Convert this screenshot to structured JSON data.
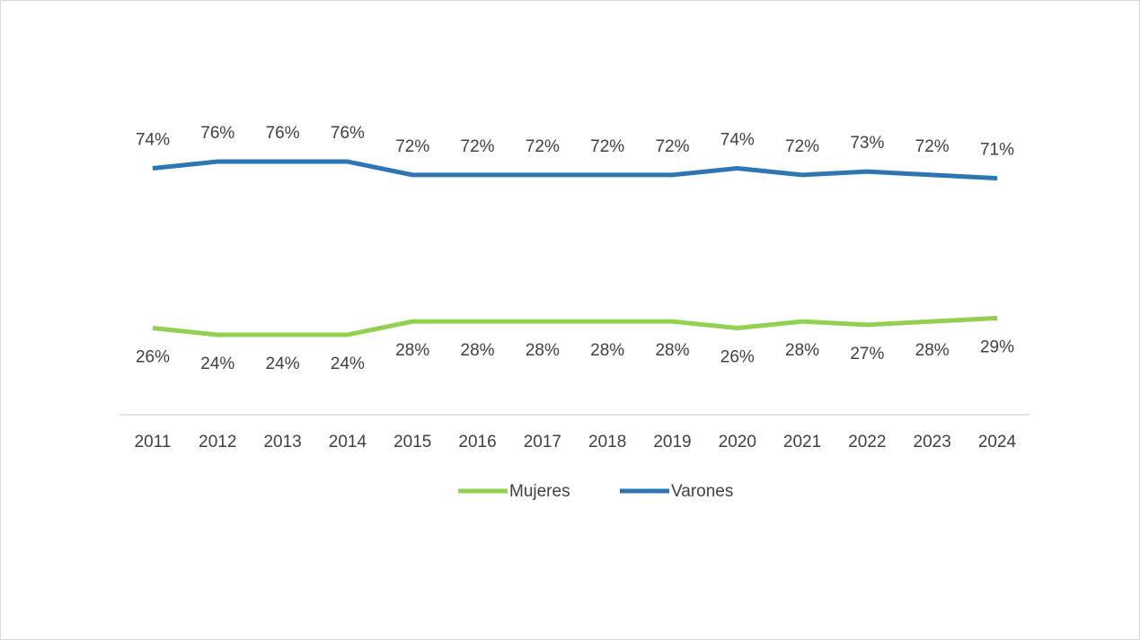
{
  "chart_data": {
    "type": "line",
    "categories": [
      "2011",
      "2012",
      "2013",
      "2014",
      "2015",
      "2016",
      "2017",
      "2018",
      "2019",
      "2020",
      "2021",
      "2022",
      "2023",
      "2024"
    ],
    "series": [
      {
        "name": "Mujeres",
        "color": "#92d050",
        "values": [
          26,
          24,
          24,
          24,
          28,
          28,
          28,
          28,
          28,
          26,
          28,
          27,
          28,
          29
        ],
        "value_labels": [
          "26%",
          "24%",
          "24%",
          "24%",
          "28%",
          "28%",
          "28%",
          "28%",
          "28%",
          "26%",
          "28%",
          "27%",
          "28%",
          "29%"
        ]
      },
      {
        "name": "Varones",
        "color": "#2e75b6",
        "values": [
          74,
          76,
          76,
          76,
          72,
          72,
          72,
          72,
          72,
          74,
          72,
          73,
          72,
          71
        ],
        "value_labels": [
          "74%",
          "76%",
          "76%",
          "76%",
          "72%",
          "72%",
          "72%",
          "72%",
          "72%",
          "74%",
          "72%",
          "73%",
          "72%",
          "71%"
        ]
      }
    ],
    "ylim": [
      0,
      100
    ],
    "legend": "bottom"
  }
}
